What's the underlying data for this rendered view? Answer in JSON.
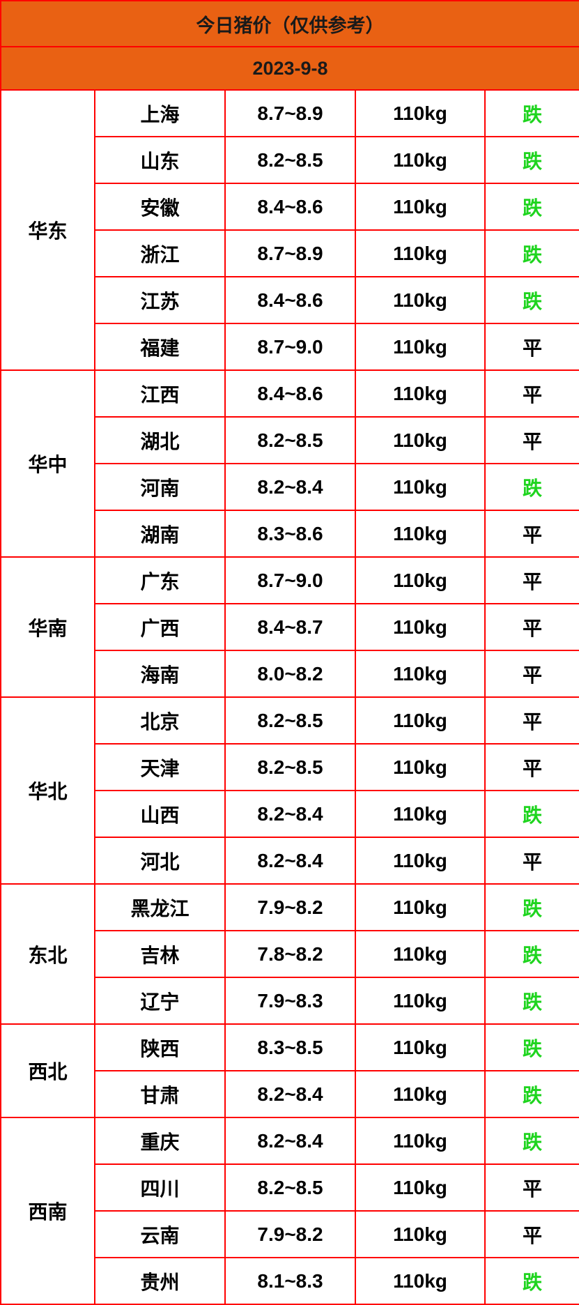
{
  "title": "今日猪价（仅供参考）",
  "date": "2023-9-8",
  "colors": {
    "header_bg": "#e96113",
    "border": "#ff0000",
    "down": "#1ed41e",
    "flat": "#000000"
  },
  "regions": [
    {
      "name": "华东",
      "rows": [
        {
          "province": "上海",
          "price": "8.7~8.9",
          "weight": "110kg",
          "trend": "跌"
        },
        {
          "province": "山东",
          "price": "8.2~8.5",
          "weight": "110kg",
          "trend": "跌"
        },
        {
          "province": "安徽",
          "price": "8.4~8.6",
          "weight": "110kg",
          "trend": "跌"
        },
        {
          "province": "浙江",
          "price": "8.7~8.9",
          "weight": "110kg",
          "trend": "跌"
        },
        {
          "province": "江苏",
          "price": "8.4~8.6",
          "weight": "110kg",
          "trend": "跌"
        },
        {
          "province": "福建",
          "price": "8.7~9.0",
          "weight": "110kg",
          "trend": "平"
        }
      ]
    },
    {
      "name": "华中",
      "rows": [
        {
          "province": "江西",
          "price": "8.4~8.6",
          "weight": "110kg",
          "trend": "平"
        },
        {
          "province": "湖北",
          "price": "8.2~8.5",
          "weight": "110kg",
          "trend": "平"
        },
        {
          "province": "河南",
          "price": "8.2~8.4",
          "weight": "110kg",
          "trend": "跌"
        },
        {
          "province": "湖南",
          "price": "8.3~8.6",
          "weight": "110kg",
          "trend": "平"
        }
      ]
    },
    {
      "name": "华南",
      "rows": [
        {
          "province": "广东",
          "price": "8.7~9.0",
          "weight": "110kg",
          "trend": "平"
        },
        {
          "province": "广西",
          "price": "8.4~8.7",
          "weight": "110kg",
          "trend": "平"
        },
        {
          "province": "海南",
          "price": "8.0~8.2",
          "weight": "110kg",
          "trend": "平"
        }
      ]
    },
    {
      "name": "华北",
      "rows": [
        {
          "province": "北京",
          "price": "8.2~8.5",
          "weight": "110kg",
          "trend": "平"
        },
        {
          "province": "天津",
          "price": "8.2~8.5",
          "weight": "110kg",
          "trend": "平"
        },
        {
          "province": "山西",
          "price": "8.2~8.4",
          "weight": "110kg",
          "trend": "跌"
        },
        {
          "province": "河北",
          "price": "8.2~8.4",
          "weight": "110kg",
          "trend": "平"
        }
      ]
    },
    {
      "name": "东北",
      "rows": [
        {
          "province": "黑龙江",
          "price": "7.9~8.2",
          "weight": "110kg",
          "trend": "跌"
        },
        {
          "province": "吉林",
          "price": "7.8~8.2",
          "weight": "110kg",
          "trend": "跌"
        },
        {
          "province": "辽宁",
          "price": "7.9~8.3",
          "weight": "110kg",
          "trend": "跌"
        }
      ]
    },
    {
      "name": "西北",
      "rows": [
        {
          "province": "陕西",
          "price": "8.3~8.5",
          "weight": "110kg",
          "trend": "跌"
        },
        {
          "province": "甘肃",
          "price": "8.2~8.4",
          "weight": "110kg",
          "trend": "跌"
        }
      ]
    },
    {
      "name": "西南",
      "rows": [
        {
          "province": "重庆",
          "price": "8.2~8.4",
          "weight": "110kg",
          "trend": "跌"
        },
        {
          "province": "四川",
          "price": "8.2~8.5",
          "weight": "110kg",
          "trend": "平"
        },
        {
          "province": "云南",
          "price": "7.9~8.2",
          "weight": "110kg",
          "trend": "平"
        },
        {
          "province": "贵州",
          "price": "8.1~8.3",
          "weight": "110kg",
          "trend": "跌"
        }
      ]
    }
  ]
}
